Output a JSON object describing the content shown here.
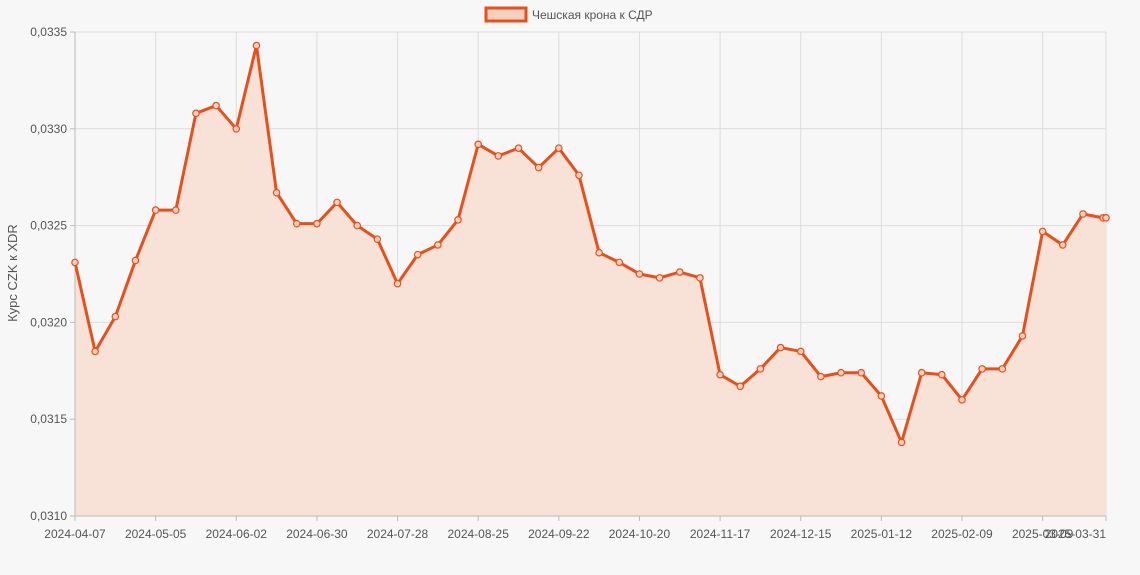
{
  "legend": {
    "label": "Чешская крона к СДР"
  },
  "colors": {
    "line": "#e8501a",
    "fill": "#f8e2d8",
    "legend_fill": "#f8d0c0",
    "grid": "#dcdcdc",
    "background": "#f7f7f7"
  },
  "chart_data": {
    "type": "area",
    "title": "",
    "xlabel": "",
    "ylabel": "Курс CZK к XDR",
    "legend_position": "top-center",
    "grid": true,
    "ylim": [
      0.031,
      0.0335
    ],
    "y_ticks": [
      "0,0310",
      "0,0315",
      "0,0320",
      "0,0325",
      "0,0330",
      "0,0335"
    ],
    "x_ticks": [
      "2024-04-07",
      "2024-05-05",
      "2024-06-02",
      "2024-06-30",
      "2024-07-28",
      "2024-08-25",
      "2024-09-22",
      "2024-10-20",
      "2024-11-17",
      "2024-12-15",
      "2025-01-12",
      "2025-02-09",
      "2025-03-09",
      "2025-03-31"
    ],
    "series": [
      {
        "name": "Чешская крона к СДР",
        "x": [
          "2024-04-07",
          "2024-04-14",
          "2024-04-21",
          "2024-04-28",
          "2024-05-05",
          "2024-05-12",
          "2024-05-19",
          "2024-05-26",
          "2024-06-02",
          "2024-06-09",
          "2024-06-16",
          "2024-06-23",
          "2024-06-30",
          "2024-07-07",
          "2024-07-14",
          "2024-07-21",
          "2024-07-28",
          "2024-08-04",
          "2024-08-11",
          "2024-08-18",
          "2024-08-25",
          "2024-09-01",
          "2024-09-08",
          "2024-09-15",
          "2024-09-22",
          "2024-09-29",
          "2024-10-06",
          "2024-10-13",
          "2024-10-20",
          "2024-10-27",
          "2024-11-03",
          "2024-11-10",
          "2024-11-17",
          "2024-11-24",
          "2024-12-01",
          "2024-12-08",
          "2024-12-15",
          "2024-12-22",
          "2024-12-29",
          "2025-01-05",
          "2025-01-12",
          "2025-01-19",
          "2025-01-26",
          "2025-02-02",
          "2025-02-09",
          "2025-02-16",
          "2025-02-23",
          "2025-03-02",
          "2025-03-09",
          "2025-03-16",
          "2025-03-23",
          "2025-03-30",
          "2025-03-31"
        ],
        "values": [
          0.03231,
          0.03185,
          0.03203,
          0.03232,
          0.03258,
          0.03258,
          0.03308,
          0.03312,
          0.033,
          0.03343,
          0.03267,
          0.03251,
          0.03251,
          0.03262,
          0.0325,
          0.03243,
          0.0322,
          0.03235,
          0.0324,
          0.03253,
          0.03292,
          0.03286,
          0.0329,
          0.0328,
          0.0329,
          0.03276,
          0.03236,
          0.03231,
          0.03225,
          0.03223,
          0.03226,
          0.03223,
          0.03173,
          0.03167,
          0.03176,
          0.03187,
          0.03185,
          0.03172,
          0.03174,
          0.03174,
          0.03162,
          0.03138,
          0.03174,
          0.03173,
          0.0316,
          0.03176,
          0.03176,
          0.03193,
          0.03247,
          0.0324,
          0.03256,
          0.03254,
          0.03254
        ]
      }
    ]
  }
}
